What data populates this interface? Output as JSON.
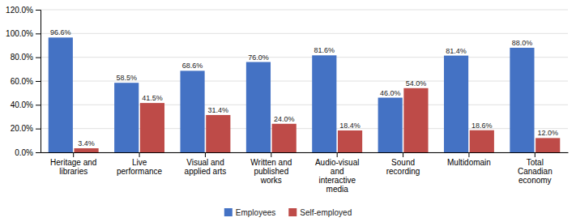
{
  "chart_data": {
    "type": "bar",
    "categories": [
      "Heritage and\nlibraries",
      "Live\nperformance",
      "Visual and\napplied arts",
      "Written and\npublished\nworks",
      "Audio-visual\nand\ninteractive\nmedia",
      "Sound\nrecording",
      "Multidomain",
      "Total\nCanadian\neconomy"
    ],
    "series": [
      {
        "name": "Employees",
        "color": "#4472C4",
        "values": [
          96.6,
          58.5,
          68.6,
          76.0,
          81.6,
          46.0,
          81.4,
          88.0
        ],
        "value_labels": [
          "96.6%",
          "58.5%",
          "68.6%",
          "76.0%",
          "81.6%",
          "46.0%",
          "81.4%",
          "88.0%"
        ]
      },
      {
        "name": "Self-employed",
        "color": "#BE4B48",
        "values": [
          3.4,
          41.5,
          31.4,
          24.0,
          18.4,
          54.0,
          18.6,
          12.0
        ],
        "value_labels": [
          "3.4%",
          "41.5%",
          "31.4%",
          "24.0%",
          "18.4%",
          "54.0%",
          "18.6%",
          "12.0%"
        ]
      }
    ],
    "ylim": [
      0,
      120
    ],
    "yticks": [
      {
        "value": 0,
        "label": "0.0%"
      },
      {
        "value": 20,
        "label": "20.0%"
      },
      {
        "value": 40,
        "label": "40.0%"
      },
      {
        "value": 60,
        "label": "60.0%"
      },
      {
        "value": 80,
        "label": "80.0%"
      },
      {
        "value": 100,
        "label": "100.0%"
      },
      {
        "value": 120,
        "label": "120.0%"
      }
    ],
    "grid": true,
    "data_labels": true,
    "legend": "bottom"
  }
}
